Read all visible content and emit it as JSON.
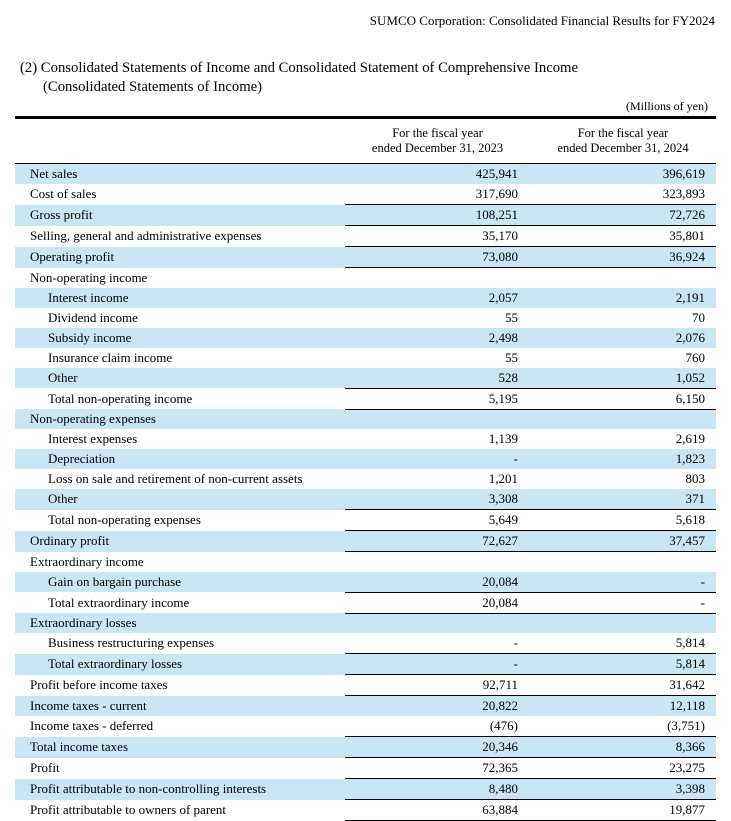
{
  "page": {
    "header": "SUMCO Corporation: Consolidated Financial Results for FY2024",
    "title_line1": "(2) Consolidated Statements of Income and Consolidated Statement of Comprehensive Income",
    "title_line2": "(Consolidated Statements of Income)",
    "unit_note": "(Millions of yen)"
  },
  "colors": {
    "row_shade": "#c9e6f5",
    "rule_color": "#000000"
  },
  "table": {
    "columns": [
      {
        "line1": "For the fiscal year",
        "line2": "ended December 31, 2023"
      },
      {
        "line1": "For the fiscal year",
        "line2": "ended December 31, 2024"
      }
    ],
    "rows": [
      {
        "label": "Net sales",
        "indent": 0,
        "fy2023": "425,941",
        "fy2024": "396,619",
        "shaded": true,
        "rule": false
      },
      {
        "label": "Cost of sales",
        "indent": 0,
        "fy2023": "317,690",
        "fy2024": "323,893",
        "shaded": false,
        "rule": true
      },
      {
        "label": "Gross profit",
        "indent": 0,
        "fy2023": "108,251",
        "fy2024": "72,726",
        "shaded": true,
        "rule": true
      },
      {
        "label": "Selling, general and administrative expenses",
        "indent": 0,
        "fy2023": "35,170",
        "fy2024": "35,801",
        "shaded": false,
        "rule": true
      },
      {
        "label": "Operating profit",
        "indent": 0,
        "fy2023": "73,080",
        "fy2024": "36,924",
        "shaded": true,
        "rule": true
      },
      {
        "label": "Non-operating income",
        "indent": 0,
        "fy2023": "",
        "fy2024": "",
        "shaded": false,
        "rule": false
      },
      {
        "label": "Interest income",
        "indent": 1,
        "fy2023": "2,057",
        "fy2024": "2,191",
        "shaded": true,
        "rule": false
      },
      {
        "label": "Dividend income",
        "indent": 1,
        "fy2023": "55",
        "fy2024": "70",
        "shaded": false,
        "rule": false
      },
      {
        "label": "Subsidy income",
        "indent": 1,
        "fy2023": "2,498",
        "fy2024": "2,076",
        "shaded": true,
        "rule": false
      },
      {
        "label": "Insurance claim income",
        "indent": 1,
        "fy2023": "55",
        "fy2024": "760",
        "shaded": false,
        "rule": false
      },
      {
        "label": "Other",
        "indent": 1,
        "fy2023": "528",
        "fy2024": "1,052",
        "shaded": true,
        "rule": true
      },
      {
        "label": "Total non-operating income",
        "indent": 1,
        "fy2023": "5,195",
        "fy2024": "6,150",
        "shaded": false,
        "rule": true
      },
      {
        "label": "Non-operating expenses",
        "indent": 0,
        "fy2023": "",
        "fy2024": "",
        "shaded": true,
        "rule": false
      },
      {
        "label": "Interest expenses",
        "indent": 1,
        "fy2023": "1,139",
        "fy2024": "2,619",
        "shaded": false,
        "rule": false
      },
      {
        "label": "Depreciation",
        "indent": 1,
        "fy2023": "-",
        "fy2024": "1,823",
        "shaded": true,
        "rule": false
      },
      {
        "label": "Loss on sale and retirement of non-current assets",
        "indent": 1,
        "fy2023": "1,201",
        "fy2024": "803",
        "shaded": false,
        "rule": false
      },
      {
        "label": "Other",
        "indent": 1,
        "fy2023": "3,308",
        "fy2024": "371",
        "shaded": true,
        "rule": true
      },
      {
        "label": "Total non-operating expenses",
        "indent": 1,
        "fy2023": "5,649",
        "fy2024": "5,618",
        "shaded": false,
        "rule": true
      },
      {
        "label": "Ordinary profit",
        "indent": 0,
        "fy2023": "72,627",
        "fy2024": "37,457",
        "shaded": true,
        "rule": true
      },
      {
        "label": "Extraordinary income",
        "indent": 0,
        "fy2023": "",
        "fy2024": "",
        "shaded": false,
        "rule": false
      },
      {
        "label": "Gain on bargain purchase",
        "indent": 1,
        "fy2023": "20,084",
        "fy2024": "-",
        "shaded": true,
        "rule": true
      },
      {
        "label": "Total extraordinary income",
        "indent": 1,
        "fy2023": "20,084",
        "fy2024": "-",
        "shaded": false,
        "rule": true
      },
      {
        "label": "Extraordinary losses",
        "indent": 0,
        "fy2023": "",
        "fy2024": "",
        "shaded": true,
        "rule": false
      },
      {
        "label": "Business restructuring expenses",
        "indent": 1,
        "fy2023": "-",
        "fy2024": "5,814",
        "shaded": false,
        "rule": true
      },
      {
        "label": "Total extraordinary losses",
        "indent": 1,
        "fy2023": "-",
        "fy2024": "5,814",
        "shaded": true,
        "rule": true
      },
      {
        "label": "Profit before income taxes",
        "indent": 0,
        "fy2023": "92,711",
        "fy2024": "31,642",
        "shaded": false,
        "rule": true
      },
      {
        "label": "Income taxes - current",
        "indent": 0,
        "fy2023": "20,822",
        "fy2024": "12,118",
        "shaded": true,
        "rule": false
      },
      {
        "label": "Income taxes - deferred",
        "indent": 0,
        "fy2023": "(476)",
        "fy2024": "(3,751)",
        "shaded": false,
        "rule": true
      },
      {
        "label": "Total income taxes",
        "indent": 0,
        "fy2023": "20,346",
        "fy2024": "8,366",
        "shaded": true,
        "rule": true
      },
      {
        "label": "Profit",
        "indent": 0,
        "fy2023": "72,365",
        "fy2024": "23,275",
        "shaded": false,
        "rule": true
      },
      {
        "label": "Profit attributable to non-controlling interests",
        "indent": 0,
        "fy2023": "8,480",
        "fy2024": "3,398",
        "shaded": true,
        "rule": true
      },
      {
        "label": "Profit attributable to owners of parent",
        "indent": 0,
        "fy2023": "63,884",
        "fy2024": "19,877",
        "shaded": false,
        "rule": true
      }
    ]
  }
}
